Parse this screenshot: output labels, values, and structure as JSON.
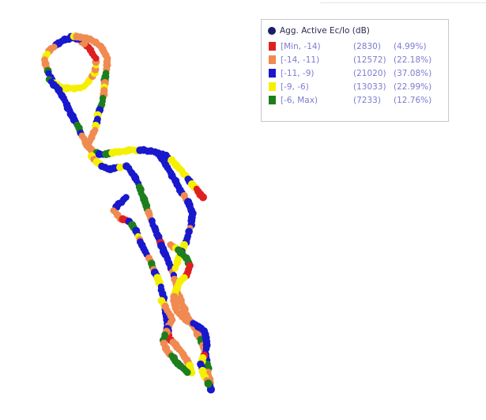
{
  "legend": {
    "title": "Agg. Active Ec/Io (dB)",
    "title_marker_color": "#1b1b6b",
    "items": [
      {
        "range": "[Min, -14)",
        "count": "(2830)",
        "percent": "(4.99%)",
        "color": "#e02020"
      },
      {
        "range": "[-14, -11)",
        "count": "(12572)",
        "percent": "(22.18%)",
        "color": "#f08a50"
      },
      {
        "range": "[-11, -9)",
        "count": "(21020)",
        "percent": "(37.08%)",
        "color": "#1818cc"
      },
      {
        "range": "[-9, -6)",
        "count": "(13033)",
        "percent": "(22.99%)",
        "color": "#f4f000"
      },
      {
        "range": "[-6, Max)",
        "count": "(7233)",
        "percent": "(12.76%)",
        "color": "#1e7e1e"
      }
    ]
  },
  "map": {
    "drive_route": "measurement points along drive-test route"
  }
}
